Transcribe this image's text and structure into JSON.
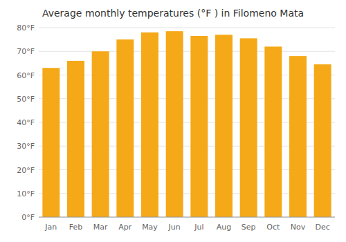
{
  "chart_data": {
    "type": "bar",
    "title": "Average monthly temperatures (°F ) in Filomeno Mata",
    "categories": [
      "Jan",
      "Feb",
      "Mar",
      "Apr",
      "May",
      "Jun",
      "Jul",
      "Aug",
      "Sep",
      "Oct",
      "Nov",
      "Dec"
    ],
    "values": [
      63,
      66,
      70,
      75,
      78,
      78.5,
      76.5,
      77,
      75.5,
      72,
      68,
      64.5
    ],
    "color": "#F5A918",
    "ylim": [
      0,
      80
    ],
    "yticks": [
      {
        "value": 0,
        "label": "0°F"
      },
      {
        "value": 10,
        "label": "10°F"
      },
      {
        "value": 20,
        "label": "20°F"
      },
      {
        "value": 30,
        "label": "30°F"
      },
      {
        "value": 40,
        "label": "40°F"
      },
      {
        "value": 50,
        "label": "50°F"
      },
      {
        "value": 60,
        "label": "60°F"
      },
      {
        "value": 70,
        "label": "70°F"
      },
      {
        "value": 80,
        "label": "80°F"
      }
    ],
    "grid": true
  }
}
